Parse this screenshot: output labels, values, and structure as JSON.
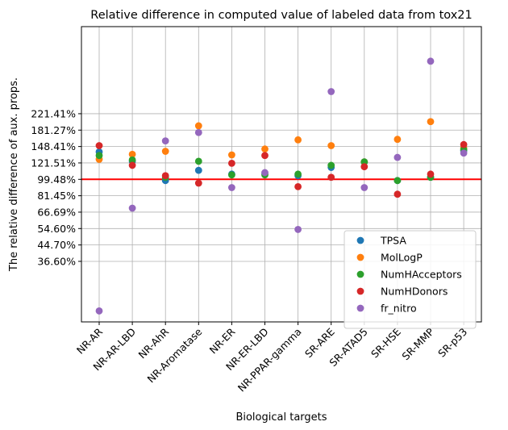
{
  "chart_data": {
    "type": "scatter",
    "title": "Relative difference in computed value of labeled data from tox21",
    "xlabel": "Biological targets",
    "ylabel": "The relative difference of aux. props.",
    "y_scale": "log",
    "categories": [
      "NR-AR",
      "NR-AR-LBD",
      "NR-AhR",
      "NR-Aromatase",
      "NR-ER",
      "NR-ER-LBD",
      "NR-PPAR-gamma",
      "SR-ARE",
      "SR-ATAD5",
      "SR-HSE",
      "SR-MMP",
      "SR-p53"
    ],
    "y_ticks": [
      {
        "value": 36.6,
        "label": "36.60%"
      },
      {
        "value": 44.7,
        "label": "44.70%"
      },
      {
        "value": 54.6,
        "label": "54.60%"
      },
      {
        "value": 66.69,
        "label": "66.69%"
      },
      {
        "value": 81.45,
        "label": "81.45%"
      },
      {
        "value": 99.48,
        "label": "99.48%"
      },
      {
        "value": 121.51,
        "label": "121.51%"
      },
      {
        "value": 148.41,
        "label": "148.41%"
      },
      {
        "value": 181.27,
        "label": "181.27%"
      },
      {
        "value": 221.41,
        "label": "221.41%"
      }
    ],
    "ylim": [
      17.5,
      640
    ],
    "reference_line": {
      "value": 99.48,
      "color": "#ff0000"
    },
    "grid": true,
    "legend_position": "lower-right",
    "series": [
      {
        "name": "TPSA",
        "color": "#1f77b4",
        "values": [
          139,
          124,
          98,
          111,
          106,
          107,
          104,
          115,
          123,
          98,
          102,
          141
        ]
      },
      {
        "name": "MolLogP",
        "color": "#ff7f0e",
        "values": [
          127,
          135,
          140,
          191,
          134,
          144,
          161,
          150,
          123,
          162,
          201,
          146
        ]
      },
      {
        "name": "NumHAcceptors",
        "color": "#2ca02c",
        "values": [
          133,
          126,
          102,
          124,
          105,
          105,
          106,
          118,
          123,
          98,
          102,
          143
        ]
      },
      {
        "name": "NumHDonors",
        "color": "#d62728",
        "values": [
          150,
          118,
          104,
          95,
          121,
          133,
          91,
          102,
          116,
          83,
          106,
          152
        ]
      },
      {
        "name": "fr_nitro",
        "color": "#9467bd",
        "values": [
          20,
          70,
          159,
          176,
          90,
          108,
          54,
          290,
          90,
          130,
          420,
          137
        ]
      }
    ]
  }
}
